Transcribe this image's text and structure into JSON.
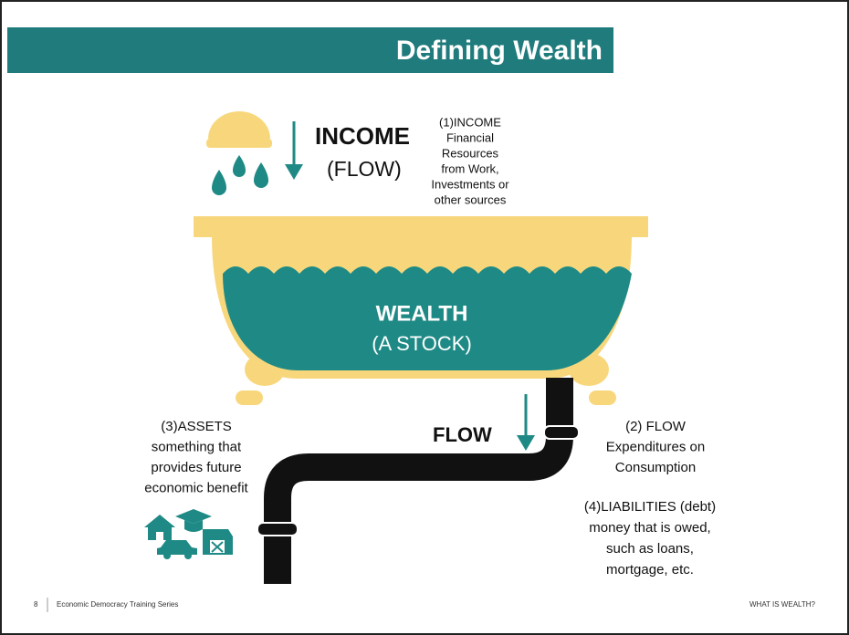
{
  "header": {
    "title": "Defining Wealth"
  },
  "income": {
    "label": "INCOME",
    "sublabel": "(FLOW)"
  },
  "tub": {
    "label": "WEALTH",
    "sublabel": "(A STOCK)"
  },
  "outflow": {
    "label": "FLOW"
  },
  "notes": {
    "income": [
      "(1)INCOME",
      "Financial",
      "Resources",
      "from Work,",
      "Investments or",
      "other sources"
    ],
    "flow": [
      "(2) FLOW",
      "Expenditures on",
      "Consumption"
    ],
    "assets": [
      "(3)ASSETS",
      "something that",
      "provides future",
      "economic benefit"
    ],
    "liabilities": [
      "(4)LIABILITIES (debt)",
      "money that is owed,",
      "such as loans,",
      "mortgage, etc."
    ]
  },
  "footer": {
    "page": "8",
    "series": "Economic Democracy Training Series",
    "section": "WHAT IS WEALTH?"
  }
}
